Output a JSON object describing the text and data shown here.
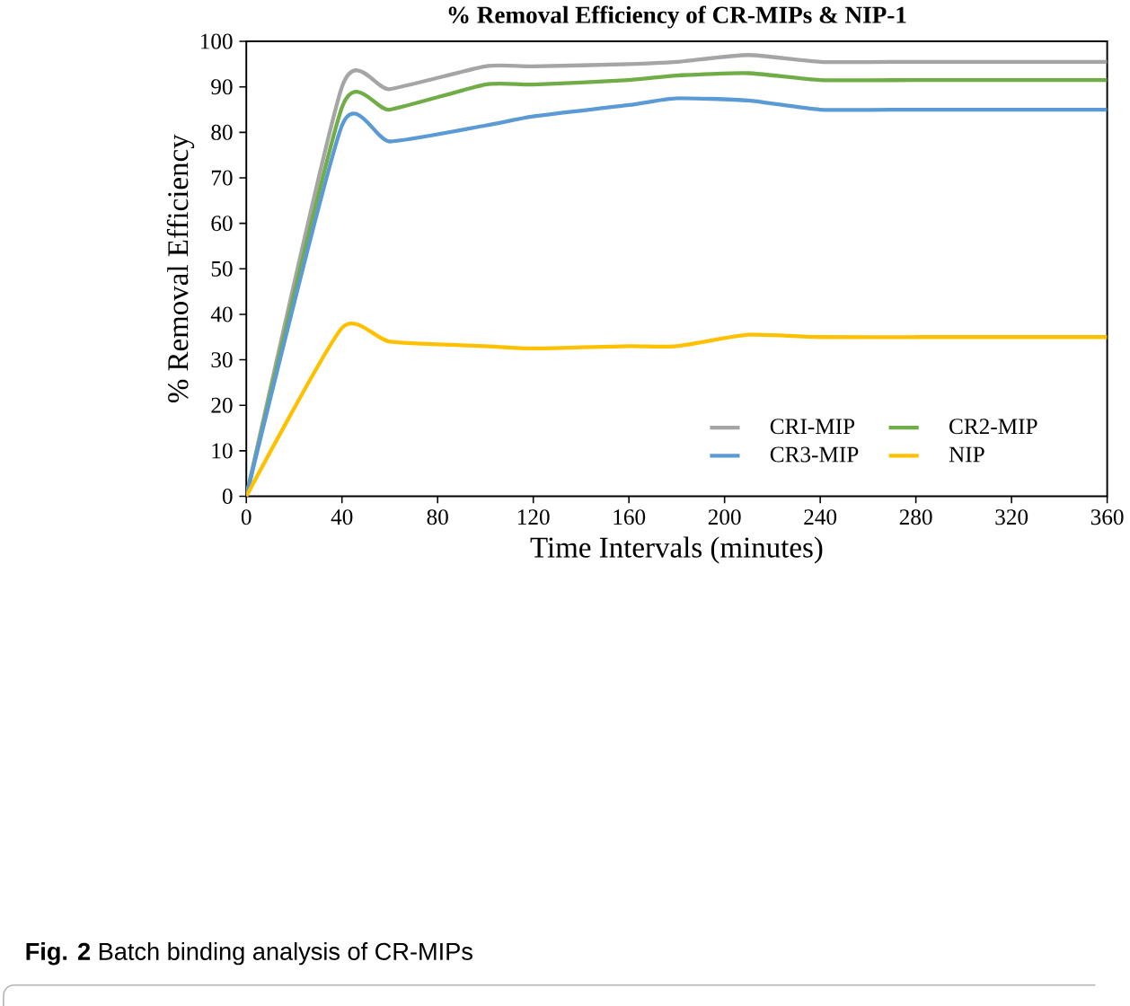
{
  "chart_data": {
    "type": "line",
    "title": "% Removal Efficiency of CR-MIPs & NIP-1",
    "xlabel": "Time Intervals (minutes)",
    "ylabel": "% Removal Efficiency",
    "x": [
      0,
      40,
      60,
      100,
      120,
      160,
      180,
      210,
      240,
      280,
      320,
      360
    ],
    "series": [
      {
        "name": "CRI-MIP",
        "color": "#a5a5a5",
        "values": [
          0,
          90,
          89.5,
          94.5,
          94.5,
          95,
          95.5,
          97,
          95.5,
          95.5,
          95.5,
          95.5
        ]
      },
      {
        "name": "CR2-MIP",
        "color": "#70ad47",
        "values": [
          0,
          85.5,
          85,
          90.5,
          90.5,
          91.5,
          92.5,
          93,
          91.5,
          91.5,
          91.5,
          91.5
        ]
      },
      {
        "name": "CR3-MIP",
        "color": "#5b9bd5",
        "values": [
          0,
          81.5,
          78,
          81.5,
          83.5,
          86,
          87.5,
          87,
          85,
          85,
          85,
          85
        ]
      },
      {
        "name": "NIP",
        "color": "#ffc000",
        "values": [
          0,
          37,
          34,
          33,
          32.5,
          33,
          33,
          35.5,
          35,
          35,
          35,
          35
        ]
      }
    ],
    "xlim": [
      0,
      360
    ],
    "xticks": [
      0,
      40,
      80,
      120,
      160,
      200,
      240,
      280,
      320,
      360
    ],
    "ylim": [
      0,
      100
    ],
    "yticks": [
      0,
      10,
      20,
      30,
      40,
      50,
      60,
      70,
      80,
      90,
      100
    ],
    "grid": false,
    "legend": "bottom right",
    "annotations": [
      "**Fig. 2**  Batch binding analysis of CR-MIPs"
    ]
  }
}
